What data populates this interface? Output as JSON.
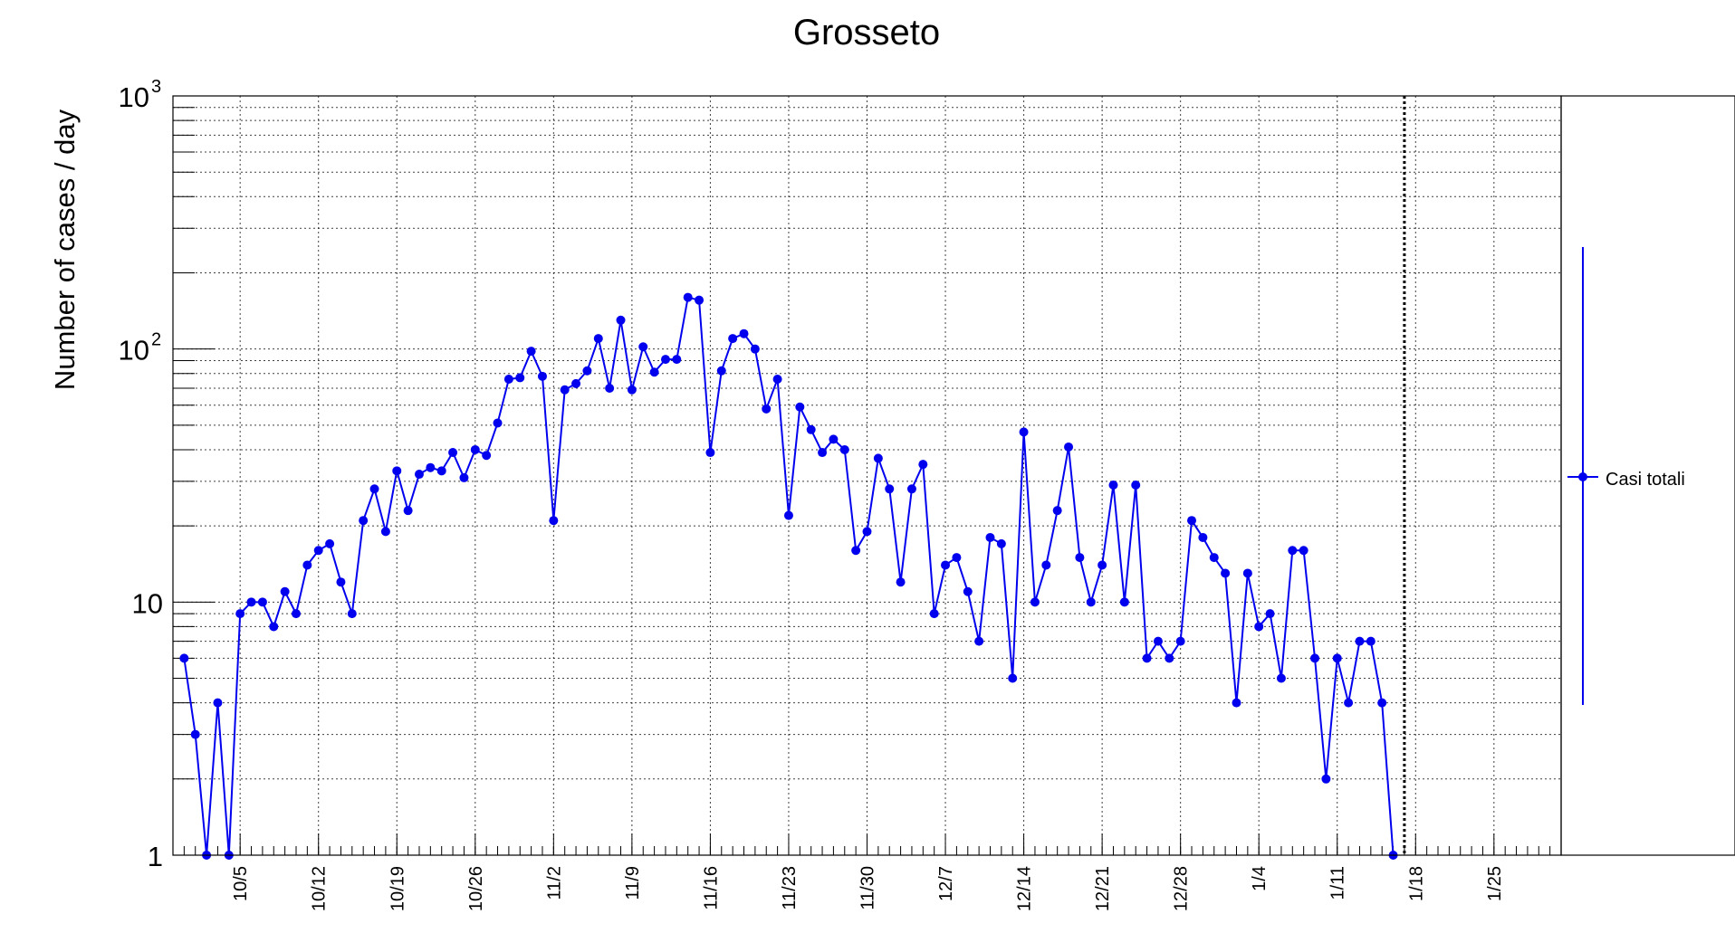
{
  "chart_data": {
    "type": "line",
    "title": "Grosseto",
    "xlabel": "",
    "ylabel": "Number of cases / day",
    "yscale": "log",
    "ylim": [
      1,
      1000
    ],
    "y_ticks": [
      {
        "value": 1,
        "label": "1"
      },
      {
        "value": 10,
        "label": "10"
      },
      {
        "value": 100,
        "label": "10",
        "exp": "2"
      },
      {
        "value": 1000,
        "label": "10",
        "exp": "3"
      }
    ],
    "x_range": [
      "2020-09-29",
      "2021-01-31"
    ],
    "x_ticks": [
      {
        "date": "2020-10-05",
        "label": "10/5"
      },
      {
        "date": "2020-10-12",
        "label": "10/12"
      },
      {
        "date": "2020-10-19",
        "label": "10/19"
      },
      {
        "date": "2020-10-26",
        "label": "10/26"
      },
      {
        "date": "2020-11-02",
        "label": "11/2"
      },
      {
        "date": "2020-11-09",
        "label": "11/9"
      },
      {
        "date": "2020-11-16",
        "label": "11/16"
      },
      {
        "date": "2020-11-23",
        "label": "11/23"
      },
      {
        "date": "2020-11-30",
        "label": "11/30"
      },
      {
        "date": "2020-12-07",
        "label": "12/7"
      },
      {
        "date": "2020-12-14",
        "label": "12/14"
      },
      {
        "date": "2020-12-21",
        "label": "12/21"
      },
      {
        "date": "2020-12-28",
        "label": "12/28"
      },
      {
        "date": "2021-01-04",
        "label": "1/4"
      },
      {
        "date": "2021-01-11",
        "label": "1/11"
      },
      {
        "date": "2021-01-18",
        "label": "1/18"
      },
      {
        "date": "2021-01-25",
        "label": "1/25"
      }
    ],
    "vline_date": "2021-01-17",
    "grid": true,
    "legend_position": "right",
    "colors": {
      "series": "#0000ee"
    },
    "series": [
      {
        "name": "Casi totali",
        "start_date": "2020-09-30",
        "values": [
          6,
          3,
          1,
          4,
          1,
          9,
          10,
          10,
          8,
          11,
          9,
          14,
          16,
          17,
          12,
          9,
          21,
          28,
          19,
          33,
          23,
          32,
          34,
          33,
          39,
          31,
          40,
          38,
          51,
          76,
          77,
          98,
          78,
          21,
          69,
          73,
          82,
          110,
          70,
          130,
          69,
          102,
          81,
          91,
          91,
          160,
          156,
          39,
          82,
          110,
          115,
          100,
          58,
          76,
          22,
          59,
          48,
          39,
          44,
          40,
          16,
          19,
          37,
          28,
          12,
          28,
          35,
          9,
          14,
          15,
          11,
          7,
          18,
          17,
          5,
          47,
          10,
          14,
          23,
          41,
          15,
          10,
          14,
          29,
          10,
          29,
          6,
          7,
          6,
          7,
          21,
          18,
          15,
          13,
          4,
          13,
          8,
          9,
          5,
          16,
          16,
          6,
          2,
          6,
          4,
          7,
          7,
          4,
          1
        ]
      }
    ]
  }
}
